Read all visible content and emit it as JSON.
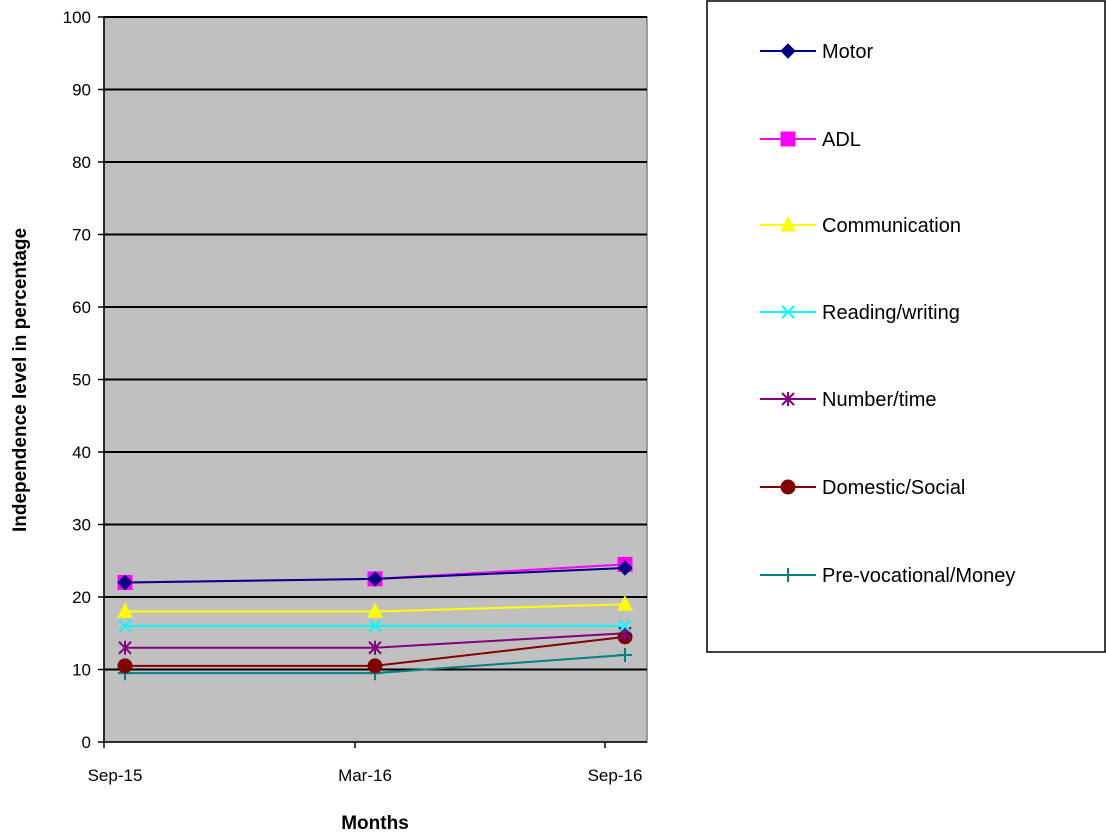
{
  "chart_data": {
    "type": "line",
    "categories": [
      "Sep-15",
      "Mar-16",
      "Sep-16"
    ],
    "xlabel": "Months",
    "ylabel": "Independence level in percentage",
    "ylim": [
      0,
      100
    ],
    "yticks": [
      0,
      10,
      20,
      30,
      40,
      50,
      60,
      70,
      80,
      90,
      100
    ],
    "grid": true,
    "plot_background": "#c0c0c0",
    "legend_position": "right",
    "series": [
      {
        "name": "Motor",
        "values": [
          22,
          22.5,
          24
        ],
        "color": "#000080",
        "marker": "diamond"
      },
      {
        "name": "ADL",
        "values": [
          22,
          22.5,
          24.5
        ],
        "color": "#ff00ff",
        "marker": "square"
      },
      {
        "name": "Communication",
        "values": [
          18,
          18,
          19
        ],
        "color": "#ffff00",
        "marker": "triangle"
      },
      {
        "name": "Reading/writing",
        "values": [
          16,
          16,
          16
        ],
        "color": "#00ffff",
        "marker": "x"
      },
      {
        "name": "Number/time",
        "values": [
          13,
          13,
          15
        ],
        "color": "#800080",
        "marker": "star"
      },
      {
        "name": "Domestic/Social",
        "values": [
          10.5,
          10.5,
          14.5
        ],
        "color": "#800000",
        "marker": "circle"
      },
      {
        "name": "Pre-vocational/Money",
        "values": [
          9.5,
          9.5,
          12
        ],
        "color": "#008080",
        "marker": "plus"
      }
    ]
  }
}
